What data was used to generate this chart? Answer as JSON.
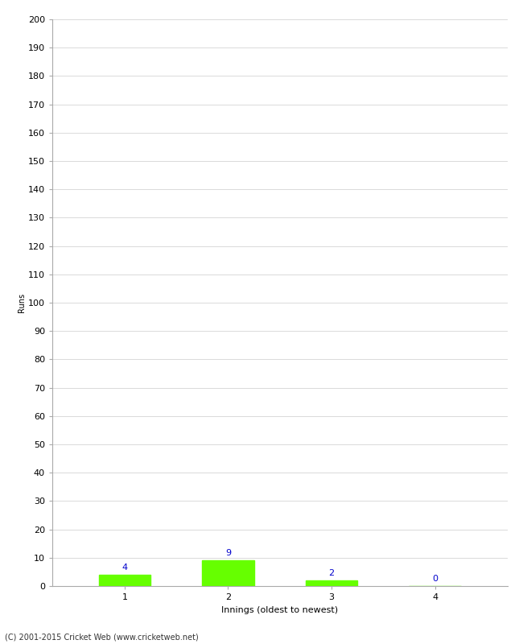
{
  "xlabel": "Innings (oldest to newest)",
  "ylabel": "Runs",
  "categories": [
    1,
    2,
    3,
    4
  ],
  "values": [
    4,
    9,
    2,
    0
  ],
  "bar_color": "#66ff00",
  "label_color": "#0000cc",
  "ylim": [
    0,
    200
  ],
  "background_color": "#ffffff",
  "footer": "(C) 2001-2015 Cricket Web (www.cricketweb.net)",
  "label_fontsize": 8,
  "axis_fontsize": 8,
  "ylabel_fontsize": 7,
  "grid_color": "#cccccc",
  "spine_color": "#aaaaaa"
}
